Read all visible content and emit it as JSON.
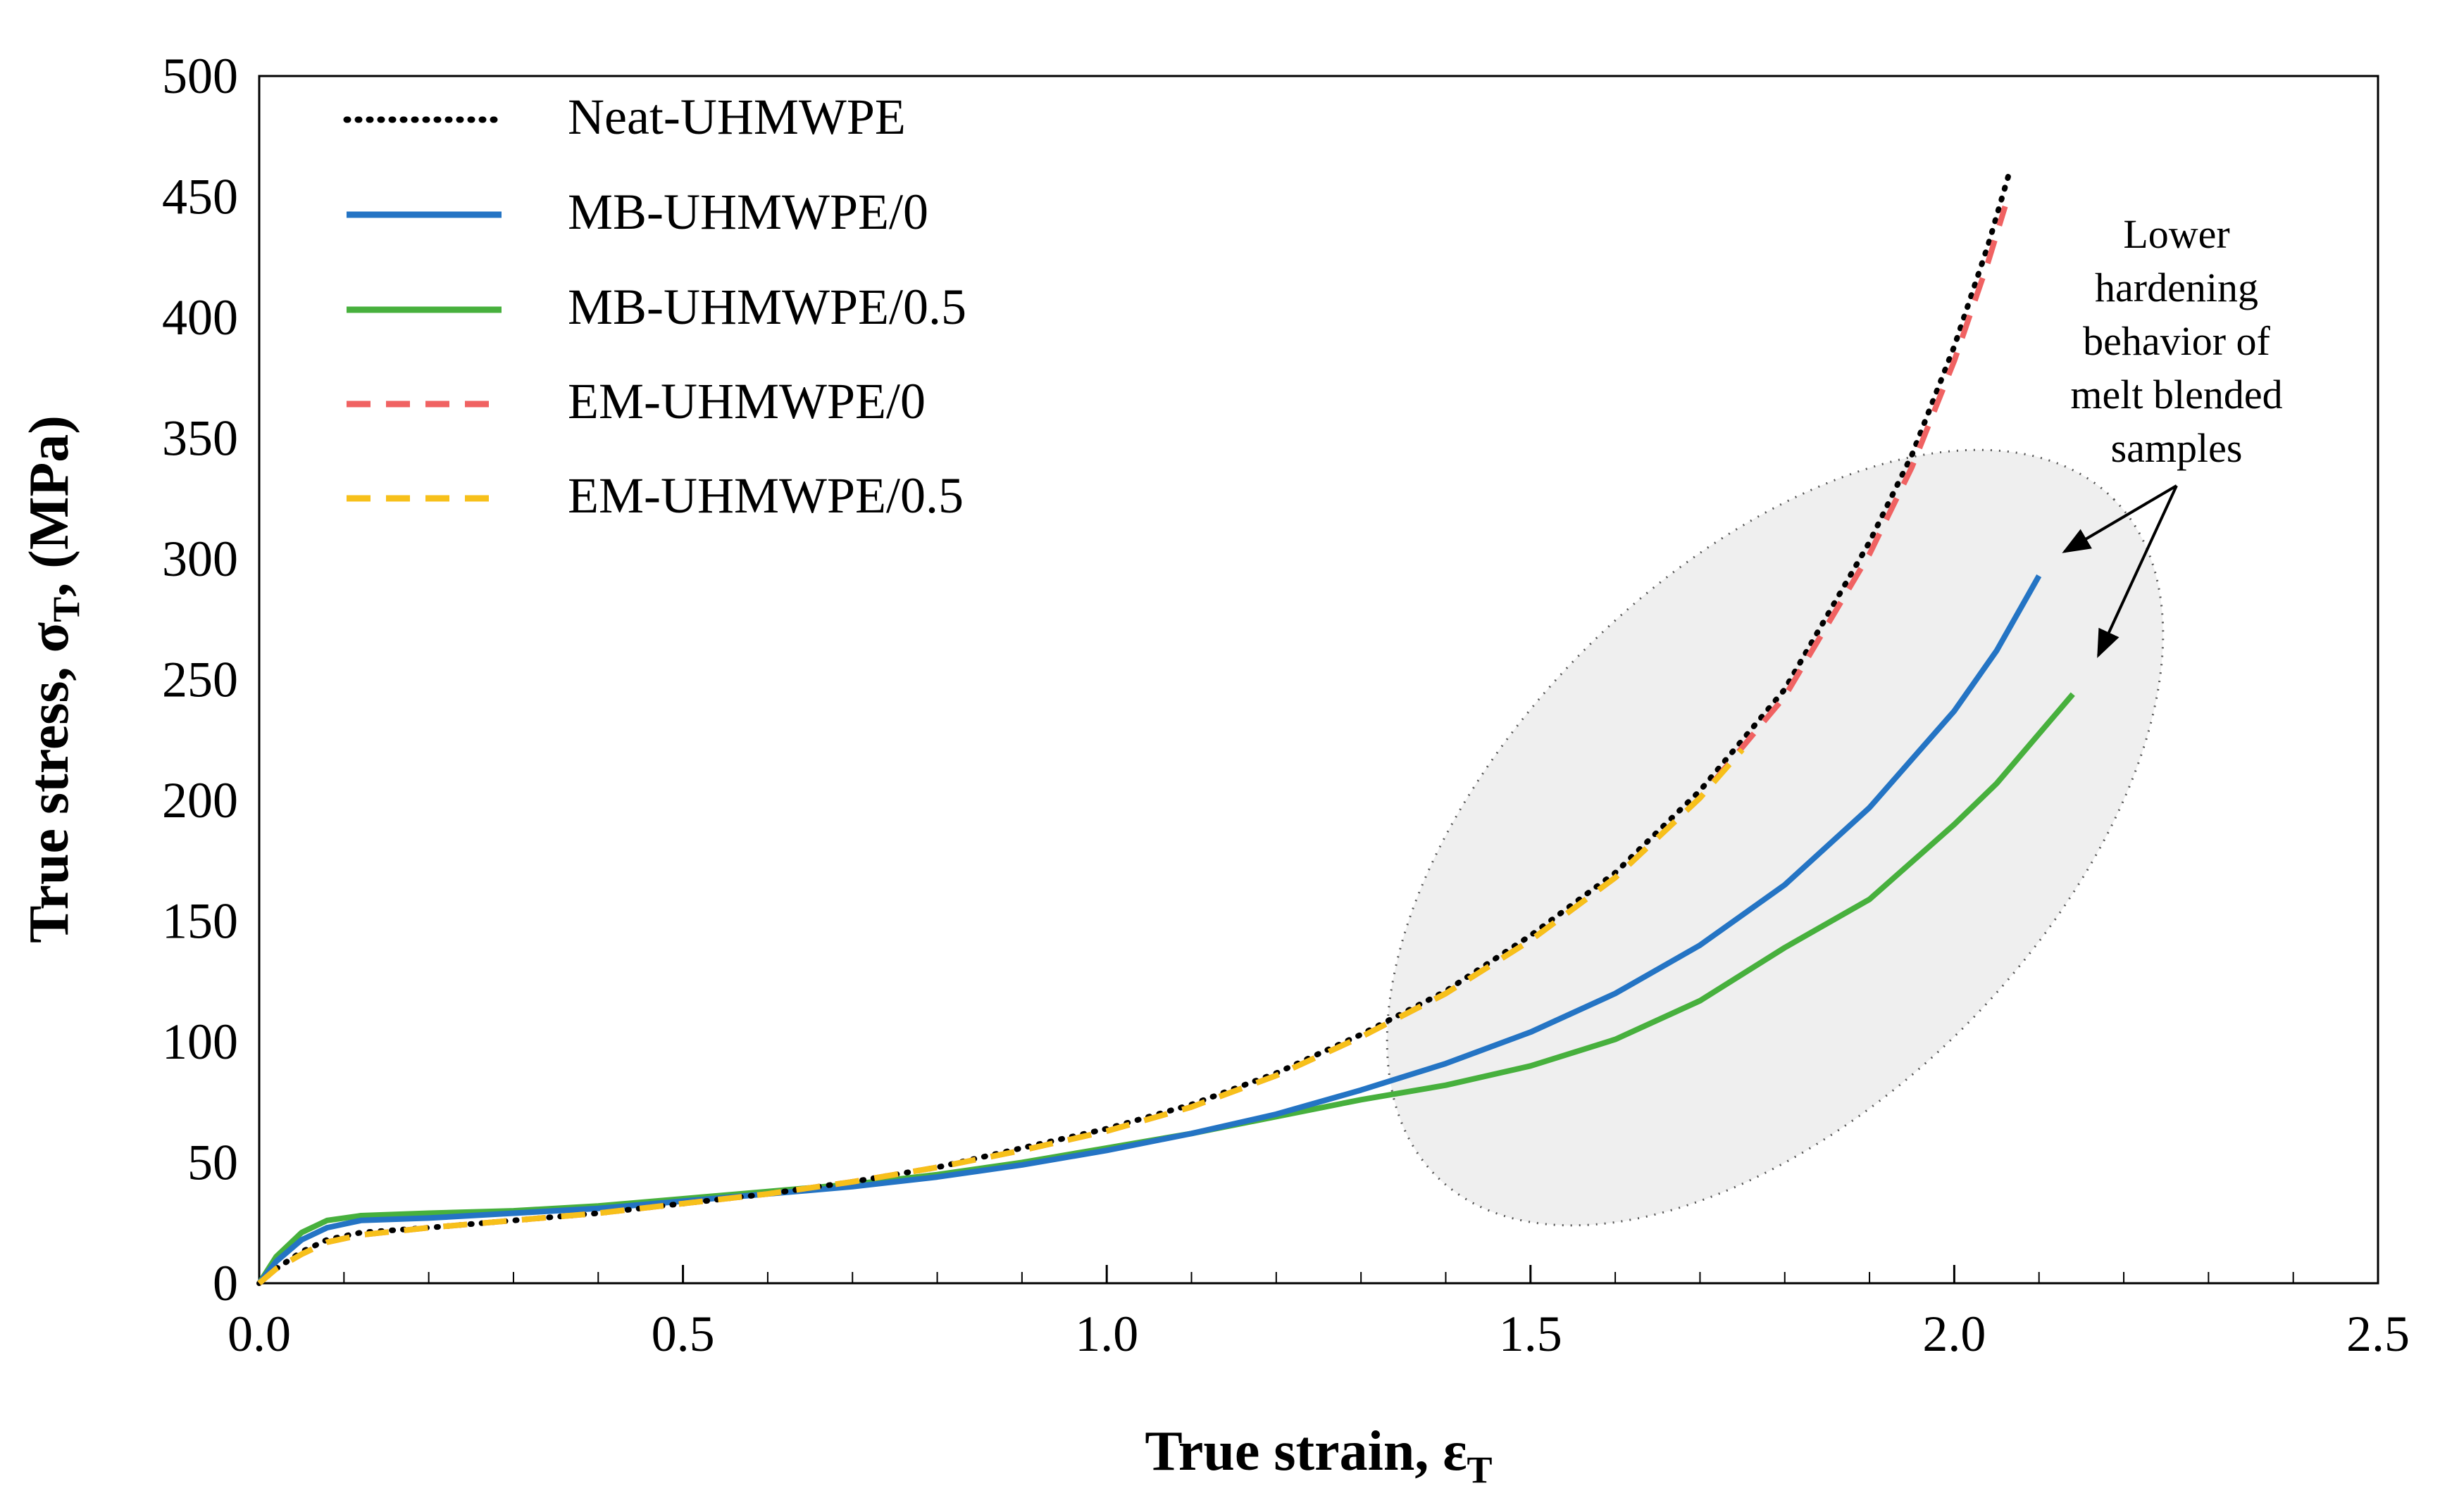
{
  "chart_data": {
    "type": "line",
    "title": "",
    "xlabel": "True strain, ε",
    "xlabel_sub": "T",
    "ylabel": "True stress, σ",
    "ylabel_sub": "T",
    "ylabel_unit": ", (MPa)",
    "xlim": [
      0,
      2.5
    ],
    "ylim": [
      0,
      500
    ],
    "x_ticks": [
      0.0,
      0.5,
      1.0,
      1.5,
      2.0,
      2.5
    ],
    "x_tick_labels": [
      "0.0",
      "0.5",
      "1.0",
      "1.5",
      "2.0",
      "2.5"
    ],
    "x_minor_step": 0.1,
    "y_ticks": [
      0,
      50,
      100,
      150,
      200,
      250,
      300,
      350,
      400,
      450,
      500
    ],
    "y_tick_labels": [
      "0",
      "50",
      "100",
      "150",
      "200",
      "250",
      "300",
      "350",
      "400",
      "450",
      "500"
    ],
    "grid": false,
    "legend_position": "top-left",
    "series": [
      {
        "name": "Neat-UHMWPE",
        "color": "#000000",
        "dash": "dotted",
        "x": [
          0,
          0.02,
          0.05,
          0.08,
          0.12,
          0.2,
          0.3,
          0.4,
          0.5,
          0.6,
          0.7,
          0.8,
          0.9,
          1.0,
          1.1,
          1.2,
          1.3,
          1.4,
          1.5,
          1.6,
          1.7,
          1.8,
          1.9,
          1.95,
          2.0,
          2.04,
          2.065
        ],
        "y": [
          0,
          6,
          13,
          18,
          21,
          23,
          26,
          29,
          33,
          37,
          42,
          48,
          56,
          64,
          74,
          87,
          103,
          121,
          144,
          170,
          204,
          246,
          307,
          343,
          388,
          430,
          460
        ]
      },
      {
        "name": "MB-UHMWPE/0",
        "color": "#2474c4",
        "dash": "solid",
        "x": [
          0,
          0.02,
          0.05,
          0.08,
          0.12,
          0.2,
          0.3,
          0.4,
          0.5,
          0.6,
          0.7,
          0.8,
          0.9,
          1.0,
          1.1,
          1.2,
          1.3,
          1.4,
          1.5,
          1.6,
          1.7,
          1.8,
          1.9,
          2.0,
          2.05,
          2.1
        ],
        "y": [
          0,
          9,
          18,
          23,
          26,
          27,
          29,
          31,
          34,
          37,
          40,
          44,
          49,
          55,
          62,
          70,
          80,
          91,
          104,
          120,
          140,
          165,
          197,
          237,
          262,
          293
        ]
      },
      {
        "name": "MB-UHMWPE/0.5",
        "color": "#47b03d",
        "dash": "solid",
        "x": [
          0,
          0.02,
          0.05,
          0.08,
          0.12,
          0.2,
          0.3,
          0.4,
          0.5,
          0.6,
          0.7,
          0.8,
          0.9,
          1.0,
          1.1,
          1.2,
          1.3,
          1.4,
          1.5,
          1.6,
          1.7,
          1.8,
          1.9,
          2.0,
          2.05,
          2.14
        ],
        "y": [
          0,
          11,
          21,
          26,
          28,
          29,
          30,
          32,
          35,
          38,
          41,
          45,
          50,
          56,
          62,
          69,
          76,
          82,
          90,
          101,
          117,
          139,
          159,
          190,
          207,
          244
        ]
      },
      {
        "name": "EM-UHMWPE/0",
        "color": "#f06262",
        "dash": "dashed",
        "x": [
          0,
          0.02,
          0.05,
          0.08,
          0.12,
          0.2,
          0.3,
          0.4,
          0.5,
          0.6,
          0.7,
          0.8,
          0.9,
          1.0,
          1.1,
          1.2,
          1.3,
          1.4,
          1.5,
          1.6,
          1.7,
          1.8,
          1.9,
          1.95,
          2.0,
          2.04,
          2.06
        ],
        "y": [
          0,
          6,
          12,
          17,
          20,
          23,
          26,
          29,
          33,
          37,
          42,
          48,
          55,
          63,
          73,
          86,
          102,
          120,
          142,
          168,
          201,
          243,
          302,
          338,
          382,
          423,
          446
        ]
      },
      {
        "name": "EM-UHMWPE/0.5",
        "color": "#f7c01a",
        "dash": "dashed",
        "x": [
          0,
          0.02,
          0.05,
          0.08,
          0.12,
          0.2,
          0.3,
          0.4,
          0.5,
          0.6,
          0.7,
          0.8,
          0.9,
          1.0,
          1.1,
          1.2,
          1.3,
          1.4,
          1.5,
          1.6,
          1.7,
          1.75
        ],
        "y": [
          0,
          6,
          12,
          17,
          20,
          23,
          26,
          29,
          33,
          37,
          42,
          48,
          55,
          63,
          73,
          86,
          102,
          120,
          142,
          168,
          201,
          221
        ]
      }
    ],
    "annotation": {
      "lines": [
        "Lower",
        "hardening",
        "behavior of",
        "melt blended",
        "samples"
      ],
      "region_color": "#efefef",
      "arrow_targets": [
        {
          "series": "MB-UHMWPE/0",
          "x": 2.13,
          "y": 303
        },
        {
          "series": "MB-UHMWPE/0.5",
          "x": 2.17,
          "y": 260
        }
      ]
    }
  }
}
